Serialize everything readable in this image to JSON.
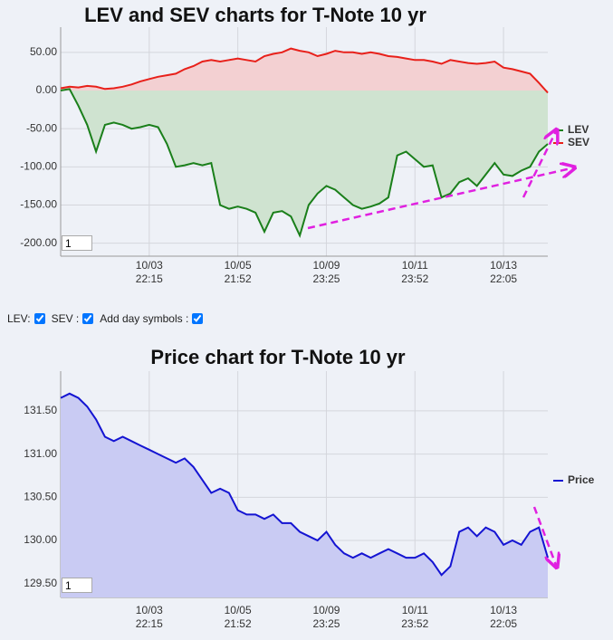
{
  "chart_data": [
    {
      "type": "line",
      "title": "LEV and SEV charts for T-Note 10 yr",
      "x": [
        0,
        1,
        2,
        3,
        4,
        5,
        6,
        7,
        8,
        9,
        10,
        11,
        12,
        13,
        14,
        15,
        16,
        17,
        18,
        19,
        20,
        21,
        22,
        23,
        24,
        25,
        26,
        27,
        28,
        29,
        30,
        31,
        32,
        33,
        34,
        35,
        36,
        37,
        38,
        39,
        40,
        41,
        42,
        43,
        44,
        45,
        46,
        47,
        48,
        49,
        50,
        51,
        52,
        53,
        54,
        55
      ],
      "series": [
        {
          "name": "LEV",
          "color": "#1a7f1a",
          "fill": "#cfe3d0",
          "values": [
            0,
            2,
            -20,
            -45,
            -80,
            -45,
            -42,
            -45,
            -50,
            -48,
            -45,
            -48,
            -70,
            -100,
            -98,
            -95,
            -98,
            -95,
            -150,
            -155,
            -152,
            -155,
            -160,
            -185,
            -160,
            -158,
            -165,
            -190,
            -150,
            -135,
            -125,
            -130,
            -140,
            -150,
            -155,
            -152,
            -148,
            -140,
            -85,
            -80,
            -90,
            -100,
            -98,
            -140,
            -135,
            -120,
            -115,
            -125,
            -110,
            -95,
            -110,
            -112,
            -105,
            -100,
            -80,
            -70
          ]
        },
        {
          "name": "SEV",
          "color": "#e8201a",
          "fill": "#f3d0d2",
          "values": [
            3,
            5,
            4,
            6,
            5,
            2,
            3,
            5,
            8,
            12,
            15,
            18,
            20,
            22,
            28,
            32,
            38,
            40,
            38,
            40,
            42,
            40,
            38,
            45,
            48,
            50,
            55,
            52,
            50,
            45,
            48,
            52,
            50,
            50,
            48,
            50,
            48,
            45,
            44,
            42,
            40,
            40,
            38,
            35,
            40,
            38,
            36,
            35,
            36,
            38,
            30,
            28,
            25,
            22,
            10,
            -3
          ]
        }
      ],
      "xlim": [
        0,
        55
      ],
      "xticks": [
        {
          "value": 10,
          "label": "10/03 22:15"
        },
        {
          "value": 20,
          "label": "10/05 21:52"
        },
        {
          "value": 30,
          "label": "10/09 23:25"
        },
        {
          "value": 40,
          "label": "10/11 23:52"
        },
        {
          "value": 50,
          "label": "10/13 22:05"
        }
      ],
      "ylim": [
        -217,
        83
      ],
      "yticks": [
        {
          "value": -200,
          "label": "-200.00"
        },
        {
          "value": -150,
          "label": "-150.00"
        },
        {
          "value": -100,
          "label": "-100.00"
        },
        {
          "value": -50,
          "label": "-50.00"
        },
        {
          "value": 0,
          "label": "0.00"
        },
        {
          "value": 50,
          "label": "50.00"
        }
      ],
      "grid": true
    },
    {
      "type": "line",
      "title": "Price chart for T-Note 10 yr",
      "x": [
        0,
        1,
        2,
        3,
        4,
        5,
        6,
        7,
        8,
        9,
        10,
        11,
        12,
        13,
        14,
        15,
        16,
        17,
        18,
        19,
        20,
        21,
        22,
        23,
        24,
        25,
        26,
        27,
        28,
        29,
        30,
        31,
        32,
        33,
        34,
        35,
        36,
        37,
        38,
        39,
        40,
        41,
        42,
        43,
        44,
        45,
        46,
        47,
        48,
        49,
        50,
        51,
        52,
        53,
        54,
        55
      ],
      "series": [
        {
          "name": "Price",
          "color": "#1414d2",
          "fill": "#c9cbf3",
          "values": [
            131.65,
            131.7,
            131.65,
            131.55,
            131.4,
            131.2,
            131.15,
            131.2,
            131.15,
            131.1,
            131.05,
            131.0,
            130.95,
            130.9,
            130.95,
            130.85,
            130.7,
            130.55,
            130.6,
            130.55,
            130.35,
            130.3,
            130.3,
            130.25,
            130.3,
            130.2,
            130.2,
            130.1,
            130.05,
            130.0,
            130.1,
            129.95,
            129.85,
            129.8,
            129.85,
            129.8,
            129.85,
            129.9,
            129.85,
            129.8,
            129.8,
            129.85,
            129.75,
            129.6,
            129.7,
            130.1,
            130.15,
            130.05,
            130.15,
            130.1,
            129.95,
            130.0,
            129.95,
            130.1,
            130.15,
            129.8
          ]
        }
      ],
      "xlim": [
        0,
        55
      ],
      "xticks": [
        {
          "value": 10,
          "label": "10/03 22:15"
        },
        {
          "value": 20,
          "label": "10/05 21:52"
        },
        {
          "value": 30,
          "label": "10/09 23:25"
        },
        {
          "value": 40,
          "label": "10/11 23:52"
        },
        {
          "value": 50,
          "label": "10/13 22:05"
        }
      ],
      "ylim": [
        129.34,
        131.96
      ],
      "yticks": [
        {
          "value": 129.5,
          "label": "129.50"
        },
        {
          "value": 130,
          "label": "130.00"
        },
        {
          "value": 130.5,
          "label": "130.50"
        },
        {
          "value": 131,
          "label": "131.00"
        },
        {
          "value": 131.5,
          "label": "131.50"
        }
      ],
      "grid": true
    }
  ],
  "zoom_inputs": [
    "1",
    "1"
  ],
  "controls": {
    "lev": "LEV:",
    "sev": "SEV :",
    "day_symbols": "Add day symbols :"
  }
}
